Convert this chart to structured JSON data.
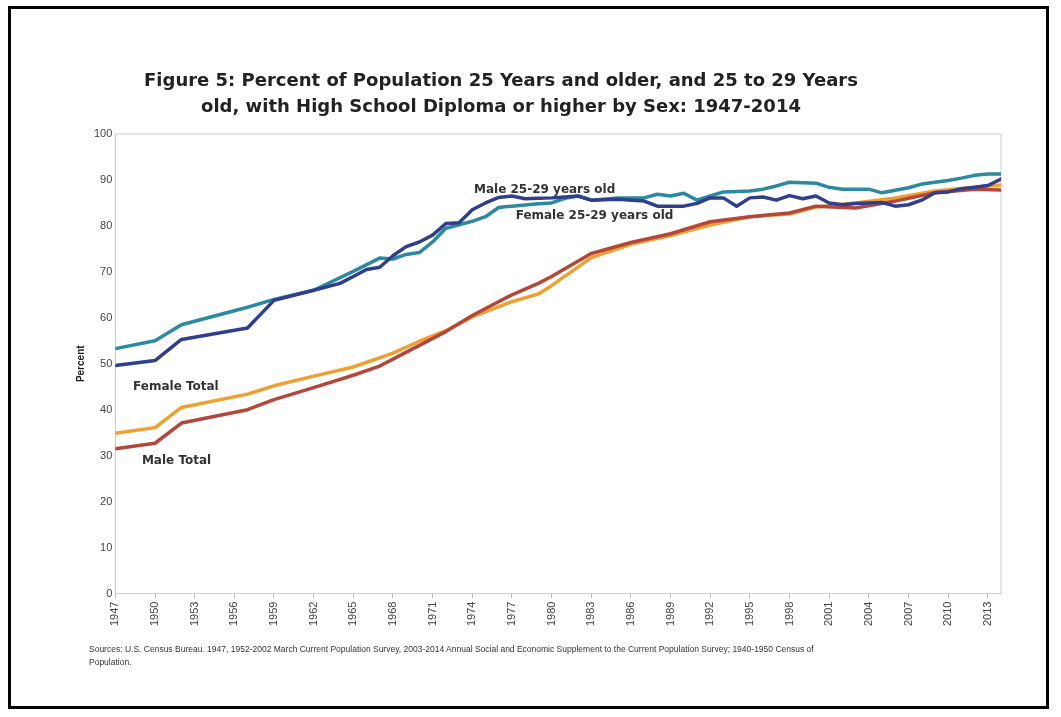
{
  "chart_data": {
    "type": "line",
    "title": "Figure 5: Percent of Population 25 Years and older, and 25 to 29 Years old, with High School Diploma or higher by Sex: 1947-2014",
    "ylabel": "Percent",
    "xlim": [
      1947,
      2014
    ],
    "xticks": [
      1947,
      1950,
      1953,
      1956,
      1959,
      1962,
      1965,
      1968,
      1971,
      1974,
      1977,
      1980,
      1983,
      1986,
      1989,
      1992,
      1995,
      1998,
      2001,
      2004,
      2007,
      2010,
      2013
    ],
    "ylim": [
      0,
      100
    ],
    "yticks": [
      0,
      10,
      20,
      30,
      40,
      50,
      60,
      70,
      80,
      90,
      100
    ],
    "grid": false,
    "legend": false,
    "marker": "none",
    "line_style": "solid",
    "series": [
      {
        "name": "Male Total",
        "color": "#b5473a",
        "x": [
          1947,
          1950,
          1952,
          1957,
          1959,
          1962,
          1965,
          1967,
          1968,
          1970,
          1972,
          1974,
          1977,
          1979,
          1980,
          1983,
          1986,
          1989,
          1992,
          1995,
          1998,
          2000,
          2003,
          2006,
          2009,
          2012,
          2014
        ],
        "values": [
          31.5,
          32.7,
          37.1,
          40,
          42.2,
          44.8,
          47.5,
          49.5,
          51,
          54,
          57,
          60.5,
          65,
          67.5,
          69,
          74,
          76.4,
          78.3,
          80.9,
          82,
          82.8,
          84.3,
          83.9,
          85.4,
          87.2,
          88,
          87.8
        ]
      },
      {
        "name": "Female Total",
        "color": "#f0a030",
        "x": [
          1947,
          1950,
          1952,
          1957,
          1959,
          1962,
          1965,
          1968,
          1970,
          1972,
          1974,
          1977,
          1979,
          1980,
          1983,
          1986,
          1989,
          1992,
          1995,
          1998,
          2000,
          2003,
          2006,
          2009,
          2012,
          2014
        ],
        "values": [
          34.9,
          36.1,
          40.5,
          43.4,
          45.2,
          47.3,
          49.3,
          52.3,
          54.9,
          57.2,
          60.2,
          63.5,
          65.2,
          67,
          73.1,
          76,
          77.9,
          80.2,
          82,
          82.6,
          84.1,
          85,
          86.1,
          87.6,
          88.4,
          88.9
        ]
      },
      {
        "name": "Male 25-29 years old",
        "color": "#2f3f8c",
        "x": [
          1947,
          1950,
          1952,
          1957,
          1959,
          1962,
          1964,
          1965,
          1966,
          1967,
          1968,
          1969,
          1970,
          1971,
          1972,
          1973,
          1974,
          1975,
          1976,
          1977,
          1978,
          1979,
          1980,
          1981,
          1982,
          1983,
          1985,
          1987,
          1988,
          1990,
          1991,
          1992,
          1993,
          1994,
          1995,
          1996,
          1997,
          1998,
          1999,
          2000,
          2001,
          2002,
          2003,
          2005,
          2006,
          2007,
          2008,
          2009,
          2010,
          2011,
          2012,
          2013,
          2014
        ],
        "values": [
          49.6,
          50.7,
          55.3,
          57.8,
          63.8,
          66,
          67.5,
          69,
          70.5,
          71,
          73.5,
          75.5,
          76.5,
          78,
          80.5,
          80.7,
          83.5,
          85,
          86.2,
          86.5,
          85.9,
          86,
          86.1,
          86.3,
          86.5,
          85.6,
          85.8,
          85.4,
          84.3,
          84.3,
          84.9,
          86.1,
          86.1,
          84.3,
          86.1,
          86.3,
          85.6,
          86.6,
          85.9,
          86.5,
          85,
          84.6,
          84.9,
          85.1,
          84.3,
          84.6,
          85.6,
          87.2,
          87.4,
          88.1,
          88.4,
          88.8,
          90.2
        ]
      },
      {
        "name": "Female 25-29 years old",
        "color": "#2b8aa0",
        "x": [
          1947,
          1950,
          1952,
          1957,
          1959,
          1962,
          1965,
          1967,
          1968,
          1969,
          1970,
          1971,
          1972,
          1974,
          1975,
          1976,
          1977,
          1979,
          1980,
          1981,
          1982,
          1983,
          1985,
          1987,
          1988,
          1989,
          1990,
          1991,
          1992,
          1993,
          1995,
          1996,
          1997,
          1998,
          2000,
          2001,
          2002,
          2004,
          2005,
          2007,
          2008,
          2009,
          2010,
          2011,
          2012,
          2013,
          2014
        ],
        "values": [
          53.3,
          55,
          58.5,
          62.3,
          64,
          66,
          70.1,
          73,
          72.8,
          73.8,
          74.2,
          76.5,
          79.5,
          81,
          82,
          84,
          84.3,
          84.8,
          85,
          86,
          86.5,
          85.6,
          86.1,
          86.1,
          86.9,
          86.5,
          87.1,
          85.6,
          86.5,
          87.4,
          87.6,
          88,
          88.7,
          89.5,
          89.3,
          88.4,
          88,
          88,
          87.2,
          88.3,
          89.1,
          89.5,
          89.9,
          90.4,
          91,
          91.3,
          91.3
        ]
      }
    ],
    "annotations": [
      "Sources:  U.S. Census Bureau. 1947, 1952-2002 March Current Population Survey, 2003-2014 Annual Social and Economic Supplement to the Current Population Survey; 1940-1950 Census of Population."
    ]
  }
}
